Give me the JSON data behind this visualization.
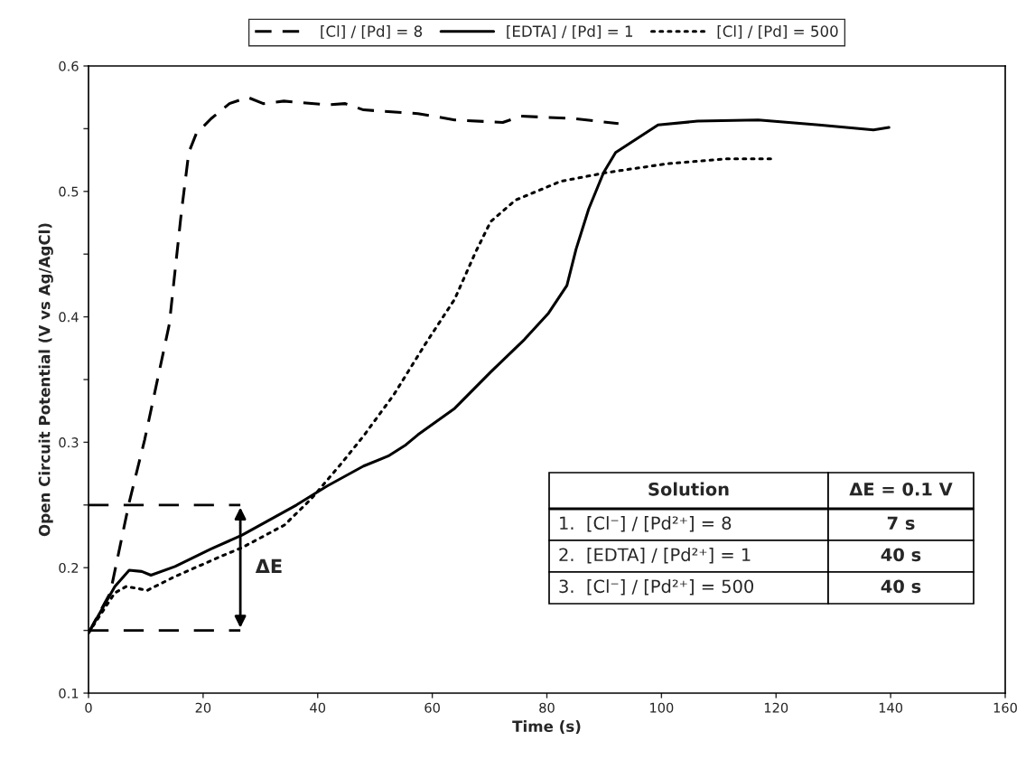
{
  "chart_data": {
    "type": "line",
    "xlabel": "Time (s)",
    "ylabel": "Open Circuit Potential (V vs Ag/AgCl)",
    "xlim": [
      0,
      160
    ],
    "xticks": [
      0,
      20,
      40,
      60,
      80,
      100,
      120,
      140,
      160
    ],
    "ylim": [
      0.1,
      0.6
    ],
    "yticks": [
      0.1,
      {
        "value": 0.15,
        "label": null
      },
      0.2,
      {
        "value": 0.25,
        "label": null
      },
      0.3,
      {
        "value": 0.35,
        "label": null
      },
      0.4,
      {
        "value": 0.45,
        "label": null
      },
      0.5,
      {
        "value": 0.55,
        "label": null
      },
      0.6
    ],
    "grid": false,
    "legend": "top",
    "marker": "none",
    "series": [
      {
        "name": "[Cl] / [Pd] = 8",
        "color": "#000000",
        "line_style": "dashed",
        "x": [
          0,
          3.8,
          7.1,
          9.8,
          14.1,
          16.2,
          17.5,
          18.8,
          21.4,
          24.6,
          27.8,
          30.5,
          34.1,
          41.6,
          44.8,
          48,
          57.5,
          63.9,
          72.3,
          75.5,
          85,
          92.5
        ],
        "values": [
          0.148,
          0.18,
          0.252,
          0.302,
          0.394,
          0.483,
          0.531,
          0.546,
          0.558,
          0.57,
          0.575,
          0.57,
          0.572,
          0.569,
          0.57,
          0.565,
          0.562,
          0.557,
          0.555,
          0.56,
          0.558,
          0.554
        ]
      },
      {
        "name": "[EDTA] / [Pd] = 1",
        "color": "#000000",
        "line_style": "solid",
        "x": [
          0,
          4.6,
          7.1,
          9.3,
          10.9,
          15.1,
          21.4,
          26.8,
          36.3,
          41.6,
          48,
          52.3,
          55.4,
          57.5,
          63.9,
          70.2,
          76.1,
          80.3,
          83.5,
          85.1,
          87.3,
          89.9,
          92,
          95.7,
          99.4,
          106.3,
          116.9,
          127.5,
          137,
          139.7
        ],
        "values": [
          0.148,
          0.185,
          0.198,
          0.197,
          0.194,
          0.201,
          0.215,
          0.226,
          0.25,
          0.265,
          0.281,
          0.289,
          0.298,
          0.306,
          0.327,
          0.356,
          0.382,
          0.403,
          0.425,
          0.454,
          0.486,
          0.515,
          0.531,
          0.542,
          0.553,
          0.556,
          0.557,
          0.553,
          0.549,
          0.551
        ]
      },
      {
        "name": "[Cl] / [Pd] = 500",
        "color": "#000000",
        "line_style": "dotted",
        "x": [
          0,
          4.6,
          6.6,
          10.3,
          15.1,
          23.6,
          26.8,
          34.2,
          38.9,
          44.3,
          48,
          53.3,
          58.6,
          63.9,
          67.6,
          70.2,
          74.5,
          82.4,
          90.4,
          100.9,
          111.6,
          119.5
        ],
        "values": [
          0.148,
          0.18,
          0.185,
          0.182,
          0.193,
          0.21,
          0.216,
          0.234,
          0.255,
          0.284,
          0.305,
          0.338,
          0.377,
          0.414,
          0.452,
          0.476,
          0.493,
          0.508,
          0.515,
          0.522,
          0.526,
          0.526
        ]
      },
      {
        "color": "#000000",
        "line_style": "dashed",
        "x": [
          0,
          26.5
        ],
        "values": [
          0.25,
          0.25
        ]
      },
      {
        "color": "#000000",
        "line_style": "dashed",
        "x": [
          0,
          26.5
        ],
        "values": [
          0.15,
          0.15
        ]
      }
    ],
    "annotations": [
      "ΔE",
      "Solution",
      "ΔE = 0.1 V",
      "1.  [Cl⁻] / [Pd²⁺] = 8",
      "7 s",
      "2.  [EDTA] / [Pd²⁺] = 1",
      "40 s",
      "3.  [Cl⁻] / [Pd²⁺] = 500",
      "40 s"
    ]
  }
}
